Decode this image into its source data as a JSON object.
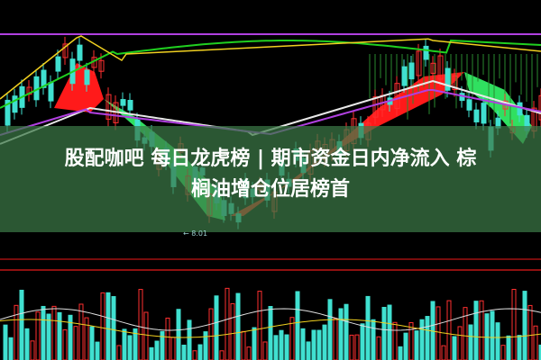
{
  "title": {
    "line1": "股配咖吧 每日龙虎榜 | 期市资金日内净流入 棕",
    "line2": "榈油增仓位居榜首"
  },
  "chart": {
    "low_label": "← 8.01",
    "colors": {
      "up": "#ff3030",
      "down": "#40e0d0",
      "ma_yellow": "#f0d020",
      "ma_green": "#20d020",
      "ma_purple": "#b040e0",
      "ma_white": "#e8e8e8",
      "fill_red": "#ff1a1a",
      "fill_green": "#30e060",
      "band": "#3c7846"
    }
  }
}
